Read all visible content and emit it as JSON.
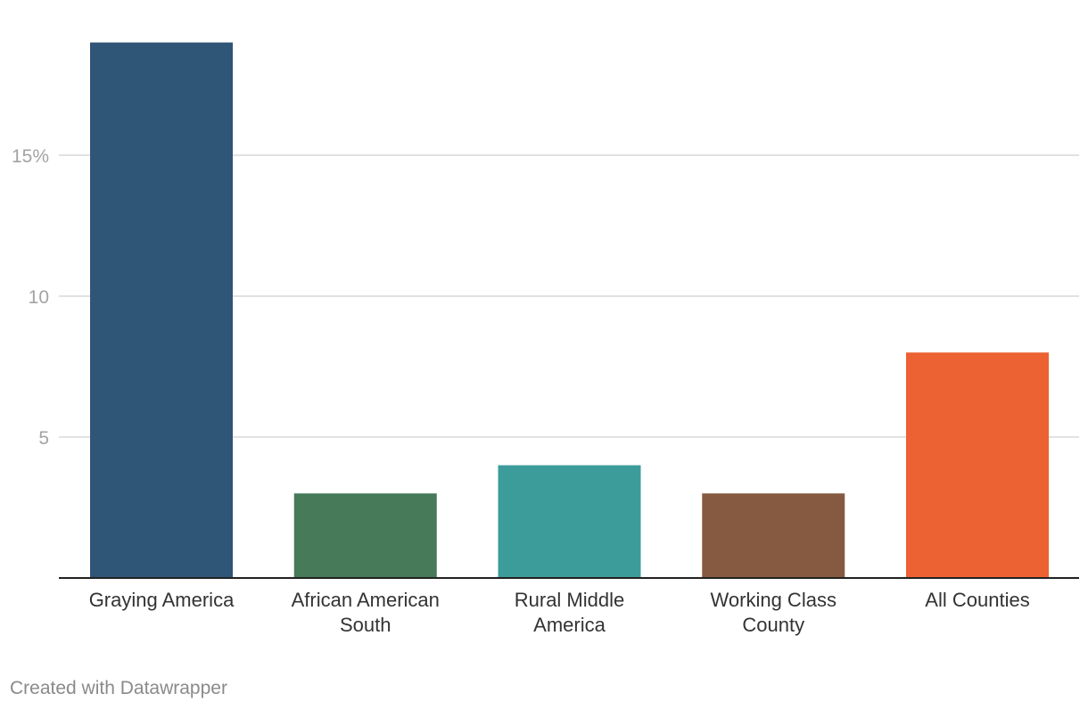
{
  "chart_data": {
    "type": "bar",
    "categories": [
      [
        "Graying America"
      ],
      [
        "African American",
        "South"
      ],
      [
        "Rural Middle",
        "America"
      ],
      [
        "Working Class",
        "County"
      ],
      [
        "All Counties"
      ]
    ],
    "values": [
      19,
      3,
      4,
      3,
      8
    ],
    "colors": [
      "#2f5577",
      "#467a59",
      "#3c9c9a",
      "#865a40",
      "#ec6232"
    ],
    "yticks": [
      {
        "value": 5,
        "label": "5"
      },
      {
        "value": 10,
        "label": "10"
      },
      {
        "value": 15,
        "label": "15%"
      }
    ],
    "ylim": [
      0,
      20.2
    ],
    "grid": true,
    "title": "",
    "xlabel": "",
    "ylabel": ""
  },
  "footer": {
    "credit": "Created with Datawrapper"
  }
}
